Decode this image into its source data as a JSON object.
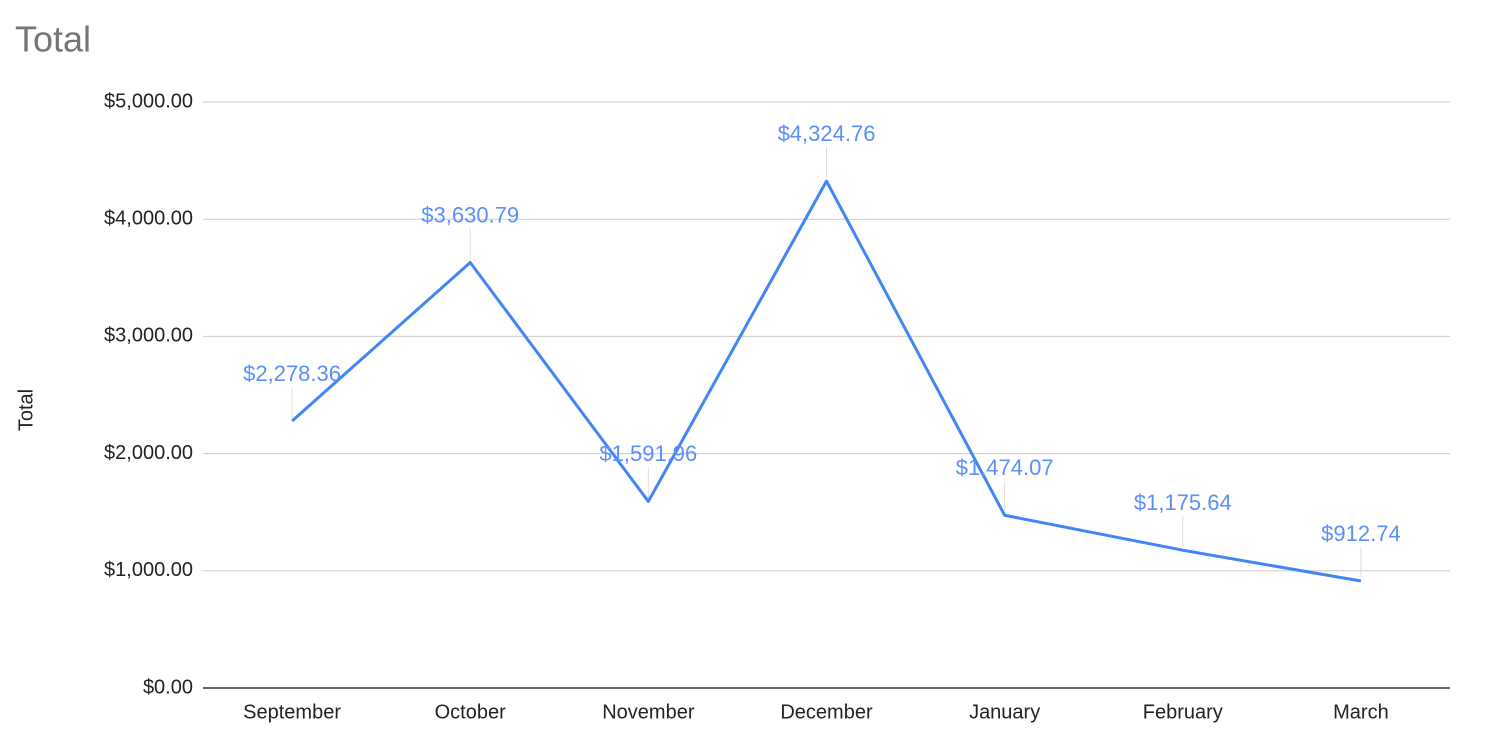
{
  "chart_data": {
    "type": "line",
    "title": "Total",
    "y_label": "Total",
    "categories": [
      "September",
      "October",
      "November",
      "December",
      "January",
      "February",
      "March"
    ],
    "values": [
      2278.36,
      3630.79,
      1591.96,
      4324.76,
      1474.07,
      1175.64,
      912.74
    ],
    "value_labels": [
      "$2,278.36",
      "$3,630.79",
      "$1,591.96",
      "$4,324.76",
      "$1,474.07",
      "$1,175.64",
      "$912.74"
    ],
    "color": "#4285f4",
    "ylim": [
      0,
      5000
    ],
    "yticks": [
      {
        "value": 0,
        "label": "$0.00"
      },
      {
        "value": 1000,
        "label": "$1,000.00"
      },
      {
        "value": 2000,
        "label": "$2,000.00"
      },
      {
        "value": 3000,
        "label": "$3,000.00"
      },
      {
        "value": 4000,
        "label": "$4,000.00"
      },
      {
        "value": 5000,
        "label": "$5,000.00"
      }
    ],
    "grid": true
  }
}
